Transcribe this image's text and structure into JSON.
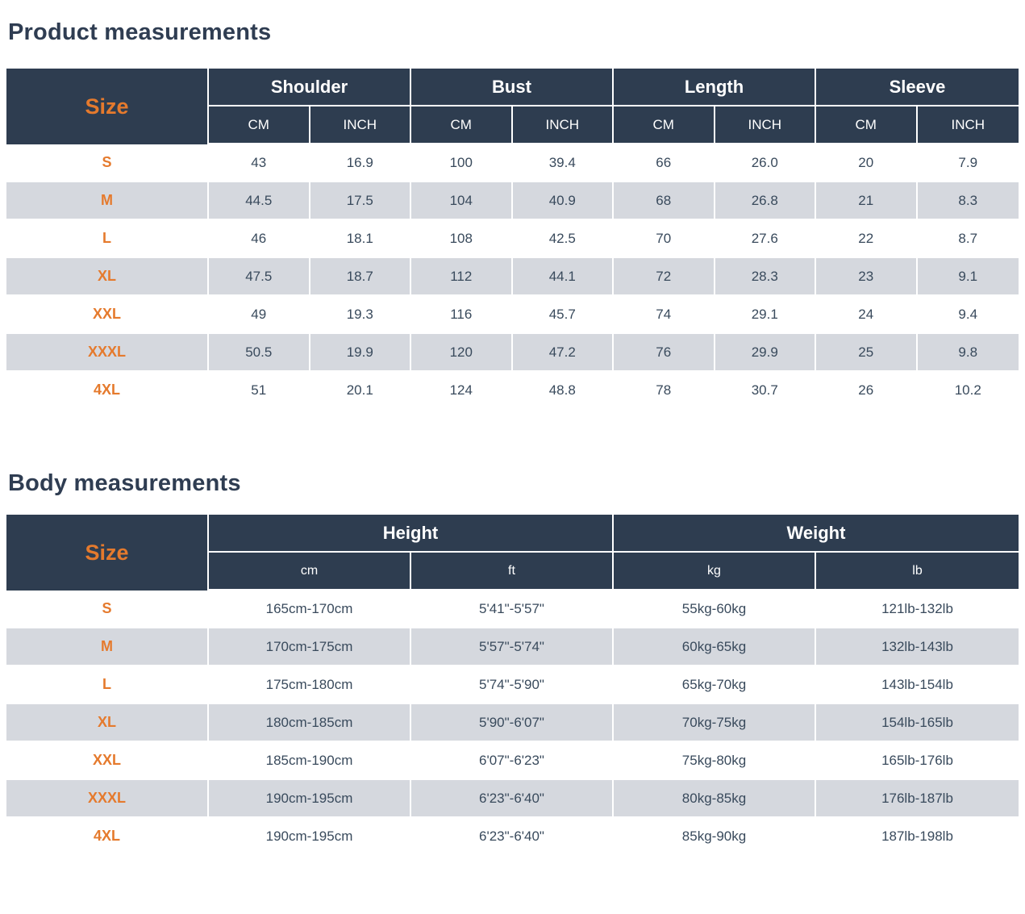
{
  "colors": {
    "header_bg": "#2e3d50",
    "accent_orange": "#e57a2d",
    "row_alt_gray": "#d5d8de",
    "title_navy": "#2f3d52",
    "text_slate": "#394a5c"
  },
  "sections": [
    {
      "title": "Product measurements",
      "table": {
        "size_header": "Size",
        "groups": [
          {
            "label": "Shoulder",
            "subs": [
              "CM",
              "INCH"
            ]
          },
          {
            "label": "Bust",
            "subs": [
              "CM",
              "INCH"
            ]
          },
          {
            "label": "Length",
            "subs": [
              "CM",
              "INCH"
            ]
          },
          {
            "label": "Sleeve",
            "subs": [
              "CM",
              "INCH"
            ]
          }
        ],
        "rows": [
          {
            "size": "S",
            "values": [
              "43",
              "16.9",
              "100",
              "39.4",
              "66",
              "26.0",
              "20",
              "7.9"
            ]
          },
          {
            "size": "M",
            "values": [
              "44.5",
              "17.5",
              "104",
              "40.9",
              "68",
              "26.8",
              "21",
              "8.3"
            ]
          },
          {
            "size": "L",
            "values": [
              "46",
              "18.1",
              "108",
              "42.5",
              "70",
              "27.6",
              "22",
              "8.7"
            ]
          },
          {
            "size": "XL",
            "values": [
              "47.5",
              "18.7",
              "112",
              "44.1",
              "72",
              "28.3",
              "23",
              "9.1"
            ]
          },
          {
            "size": "XXL",
            "values": [
              "49",
              "19.3",
              "116",
              "45.7",
              "74",
              "29.1",
              "24",
              "9.4"
            ]
          },
          {
            "size": "XXXL",
            "values": [
              "50.5",
              "19.9",
              "120",
              "47.2",
              "76",
              "29.9",
              "25",
              "9.8"
            ]
          },
          {
            "size": "4XL",
            "values": [
              "51",
              "20.1",
              "124",
              "48.8",
              "78",
              "30.7",
              "26",
              "10.2"
            ]
          }
        ]
      }
    },
    {
      "title": "Body measurements",
      "table": {
        "size_header": "Size",
        "groups": [
          {
            "label": "Height",
            "subs": [
              "cm",
              "ft"
            ]
          },
          {
            "label": "Weight",
            "subs": [
              "kg",
              "lb"
            ]
          }
        ],
        "rows": [
          {
            "size": "S",
            "values": [
              "165cm-170cm",
              "5'41\"-5'57\"",
              "55kg-60kg",
              "121lb-132lb"
            ]
          },
          {
            "size": "M",
            "values": [
              "170cm-175cm",
              "5'57\"-5'74\"",
              "60kg-65kg",
              "132lb-143lb"
            ]
          },
          {
            "size": "L",
            "values": [
              "175cm-180cm",
              "5'74\"-5'90\"",
              "65kg-70kg",
              "143lb-154lb"
            ]
          },
          {
            "size": "XL",
            "values": [
              "180cm-185cm",
              "5'90\"-6'07\"",
              "70kg-75kg",
              "154lb-165lb"
            ]
          },
          {
            "size": "XXL",
            "values": [
              "185cm-190cm",
              "6'07\"-6'23\"",
              "75kg-80kg",
              "165lb-176lb"
            ]
          },
          {
            "size": "XXXL",
            "values": [
              "190cm-195cm",
              "6'23\"-6'40\"",
              "80kg-85kg",
              "176lb-187lb"
            ]
          },
          {
            "size": "4XL",
            "values": [
              "190cm-195cm",
              "6'23\"-6'40\"",
              "85kg-90kg",
              "187lb-198lb"
            ]
          }
        ]
      }
    }
  ]
}
